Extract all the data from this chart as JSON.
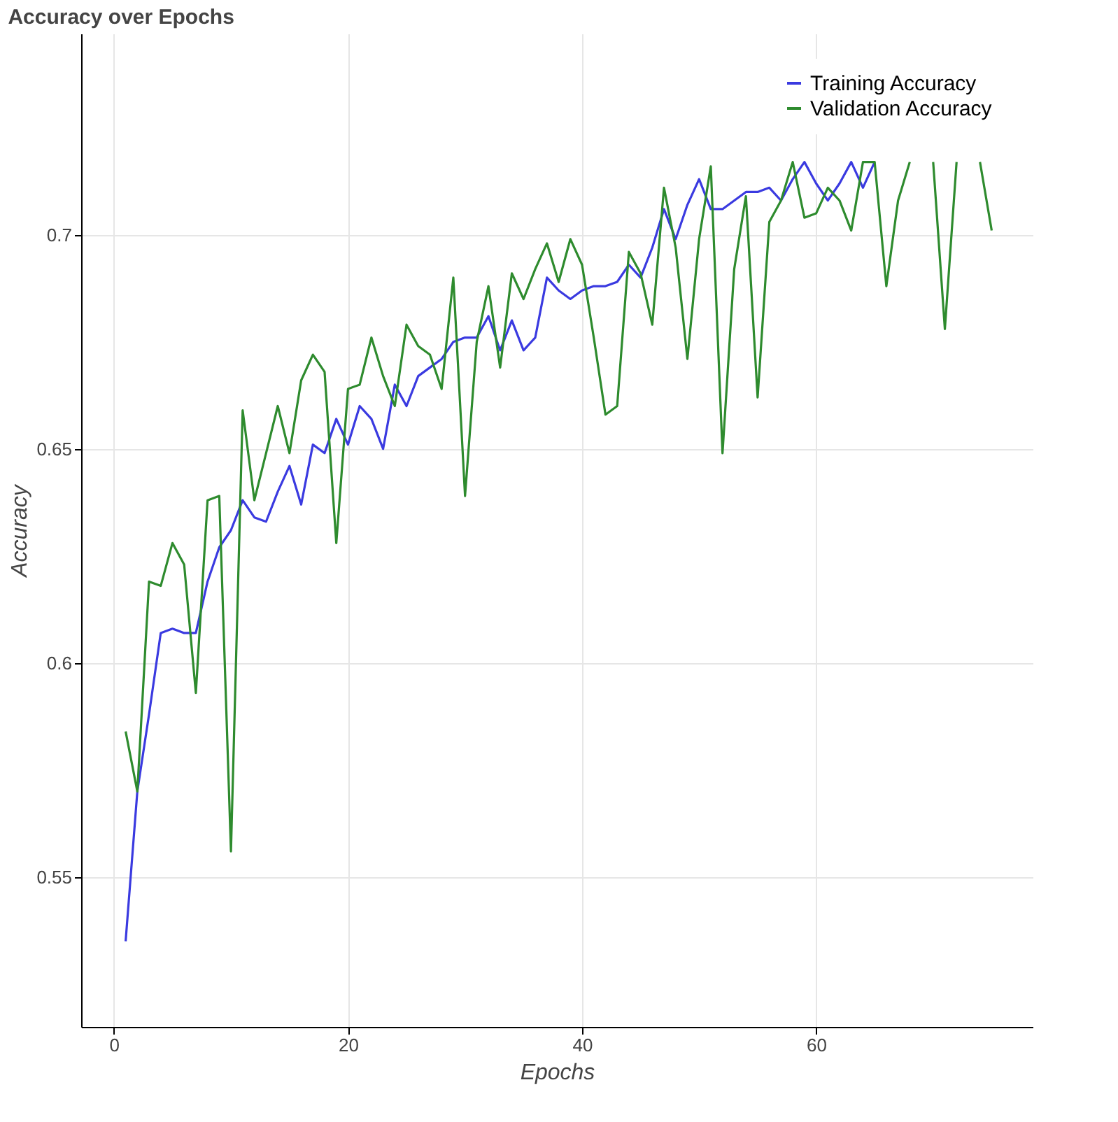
{
  "chart_data": {
    "type": "line",
    "title": "Accuracy over Epochs",
    "xlabel": "Epochs",
    "ylabel": "Accuracy",
    "x": [
      1,
      2,
      3,
      4,
      5,
      6,
      7,
      8,
      9,
      10,
      11,
      12,
      13,
      14,
      15,
      16,
      17,
      18,
      19,
      20,
      21,
      22,
      23,
      24,
      25,
      26,
      27,
      28,
      29,
      30,
      31,
      32,
      33,
      34,
      35,
      36,
      37,
      38,
      39,
      40,
      41,
      42,
      43,
      44,
      45,
      46,
      47,
      48,
      49,
      50,
      51,
      52,
      53,
      54,
      55,
      56,
      57,
      58,
      59,
      60,
      61,
      62,
      63,
      64,
      65,
      66,
      67,
      68,
      69,
      70,
      71,
      72,
      73,
      74,
      75
    ],
    "series": [
      {
        "name": "Training Accuracy",
        "color": "#3a3ae0",
        "values": [
          0.535,
          0.57,
          0.588,
          0.607,
          0.608,
          0.607,
          0.607,
          0.619,
          0.627,
          0.631,
          0.638,
          0.634,
          0.633,
          0.64,
          0.646,
          0.637,
          0.651,
          0.649,
          0.657,
          0.651,
          0.66,
          0.657,
          0.65,
          0.665,
          0.66,
          0.667,
          0.669,
          0.671,
          0.675,
          0.676,
          0.676,
          0.681,
          0.673,
          0.68,
          0.673,
          0.676,
          0.69,
          0.687,
          0.685,
          0.687,
          0.688,
          0.688,
          0.689,
          0.693,
          0.69,
          0.697,
          0.706,
          0.699,
          0.707,
          0.713,
          0.706,
          0.706,
          0.708,
          0.71,
          0.71,
          0.711,
          0.708,
          0.713,
          0.717,
          0.712,
          0.708,
          0.712,
          0.717,
          0.711,
          0.717,
          null,
          null,
          null,
          null,
          null,
          null,
          null,
          null,
          null,
          null
        ]
      },
      {
        "name": "Validation Accuracy",
        "color": "#2e8b2e",
        "values": [
          0.584,
          0.57,
          0.619,
          0.618,
          0.628,
          0.623,
          0.593,
          0.638,
          0.639,
          0.556,
          0.659,
          0.638,
          0.649,
          0.66,
          0.649,
          0.666,
          0.672,
          0.668,
          0.628,
          0.664,
          0.665,
          0.676,
          0.667,
          0.66,
          0.679,
          0.674,
          0.672,
          0.664,
          0.69,
          0.639,
          0.675,
          0.688,
          0.669,
          0.691,
          0.685,
          0.692,
          0.698,
          0.689,
          0.699,
          0.693,
          0.676,
          0.658,
          0.66,
          0.696,
          0.691,
          0.679,
          0.711,
          0.697,
          0.671,
          0.699,
          0.716,
          0.649,
          0.692,
          0.709,
          0.662,
          0.703,
          0.708,
          0.717,
          0.704,
          0.705,
          0.711,
          0.708,
          0.701,
          0.717,
          0.717,
          0.688,
          0.708,
          0.717,
          null,
          0.717,
          0.678,
          0.717,
          null,
          0.717,
          0.701
        ]
      }
    ],
    "xlim": [
      -2.8,
      78.5
    ],
    "ylim": [
      0.515,
      0.747
    ],
    "xticks": [
      0,
      20,
      40,
      60
    ],
    "yticks": [
      0.55,
      0.6,
      0.65,
      0.7
    ],
    "grid": true,
    "legend": "top right",
    "line_style": "solid",
    "marker": "none"
  }
}
